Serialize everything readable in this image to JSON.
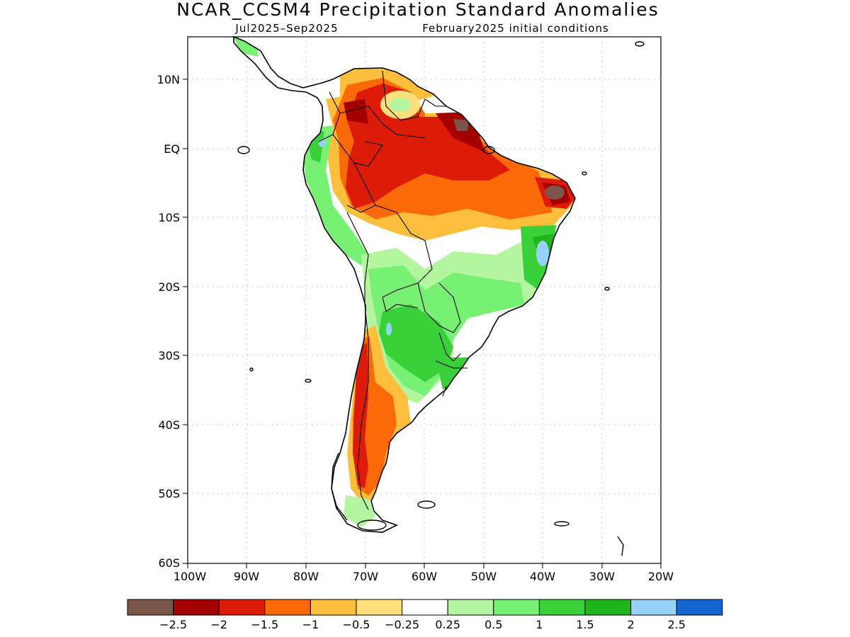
{
  "title": "NCAR_CCSM4 Precipitation Standard Anomalies",
  "subtitle_left": "Jul2025–Sep2025",
  "subtitle_right": "February2025 initial conditions",
  "map": {
    "region": "South America",
    "lon_range": [
      -100,
      -20
    ],
    "lat_range": [
      -60,
      16
    ],
    "lat_ticks": [
      "10N",
      "EQ",
      "10S",
      "20S",
      "30S",
      "40S",
      "50S",
      "60S"
    ],
    "lon_ticks": [
      "100W",
      "90W",
      "80W",
      "70W",
      "60W",
      "50W",
      "40W",
      "30W",
      "20W"
    ],
    "grid": "dotted"
  },
  "colorbar": {
    "colors": [
      "#7b5648",
      "#a50000",
      "#dc1b08",
      "#fb6a08",
      "#fdbe3c",
      "#fee07a",
      "#ffffff",
      "#b4f5a0",
      "#78f073",
      "#39d03a",
      "#1fb51e",
      "#96d2fa",
      "#1464d2"
    ],
    "labels": [
      "−2.5",
      "−2",
      "−1.5",
      "−1",
      "−0.5",
      "−0.25",
      "0.25",
      "0.5",
      "1",
      "1.5",
      "2",
      "2.5"
    ]
  }
}
